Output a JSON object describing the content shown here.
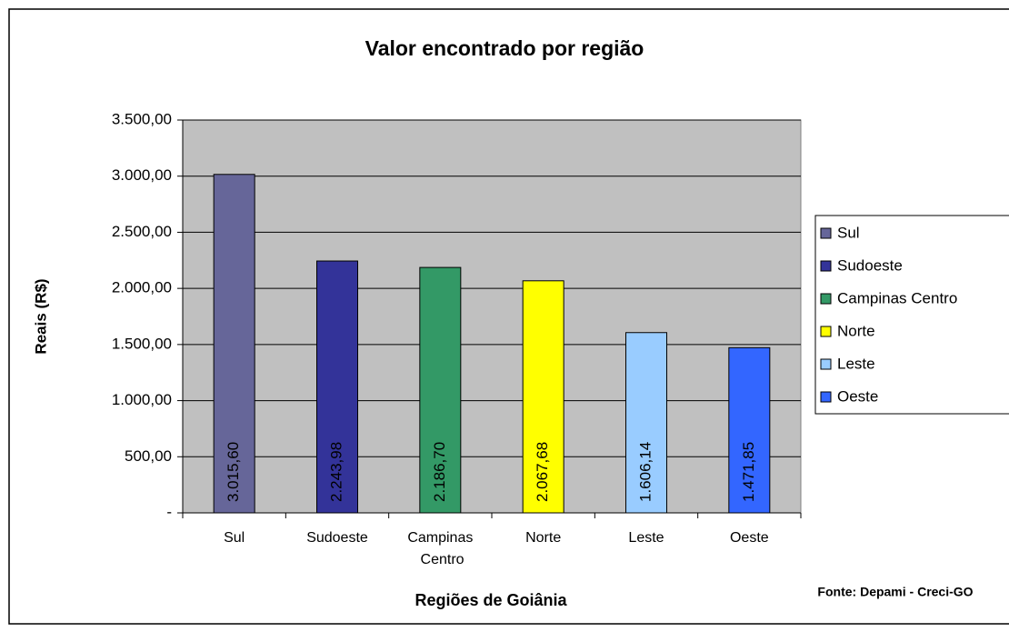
{
  "chart_data": {
    "type": "bar",
    "title": "Valor encontrado por região",
    "ylabel": "Reais (R$)",
    "xlabel": "Regiões de Goiânia",
    "source": "Fonte: Depami - Creci-GO",
    "categories": [
      "Sul",
      "Sudoeste",
      "Campinas Centro",
      "Norte",
      "Leste",
      "Oeste"
    ],
    "values": [
      3015.6,
      2243.98,
      2186.7,
      2067.68,
      1606.14,
      1471.85
    ],
    "value_labels": [
      "3.015,60",
      "2.243,98",
      "2.186,70",
      "2.067,68",
      "1.606,14",
      "1.471,85"
    ],
    "colors": [
      "#666699",
      "#333399",
      "#339966",
      "#FFFF00",
      "#99CCFF",
      "#3366FF"
    ],
    "ylim": [
      0,
      3500
    ],
    "yticks": [
      {
        "value": 0,
        "label": "-"
      },
      {
        "value": 500,
        "label": "500,00"
      },
      {
        "value": 1000,
        "label": "1.000,00"
      },
      {
        "value": 1500,
        "label": "1.500,00"
      },
      {
        "value": 2000,
        "label": "2.000,00"
      },
      {
        "value": 2500,
        "label": "2.500,00"
      },
      {
        "value": 3000,
        "label": "3.000,00"
      },
      {
        "value": 3500,
        "label": "3.500,00"
      }
    ],
    "grid": true,
    "legend": "right"
  }
}
